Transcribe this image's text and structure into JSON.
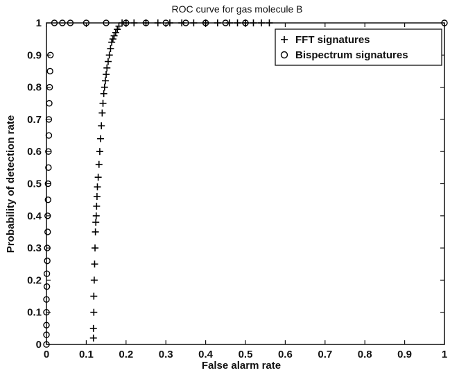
{
  "chart_data": {
    "type": "scatter",
    "title": "ROC curve for gas molecule B",
    "xlabel": "False alarm rate",
    "ylabel": "Probability of detection rate",
    "xlim": [
      0,
      1
    ],
    "ylim": [
      0,
      1
    ],
    "x_ticks": [
      "0",
      "0.1",
      "0.2",
      "0.3",
      "0.4",
      "0.5",
      "0.6",
      "0.7",
      "0.8",
      "0.9",
      "1"
    ],
    "y_ticks": [
      "0",
      "0.1",
      "0.2",
      "0.3",
      "0.4",
      "0.5",
      "0.6",
      "0.7",
      "0.8",
      "0.9",
      "1"
    ],
    "grid": false,
    "legend_position": "top-right",
    "series": [
      {
        "name": "FFT signatures",
        "marker": "plus",
        "color": "#000000",
        "x": [
          0.118,
          0.118,
          0.119,
          0.119,
          0.12,
          0.121,
          0.122,
          0.123,
          0.124,
          0.125,
          0.126,
          0.127,
          0.128,
          0.13,
          0.132,
          0.134,
          0.136,
          0.138,
          0.14,
          0.142,
          0.144,
          0.146,
          0.148,
          0.15,
          0.152,
          0.155,
          0.158,
          0.161,
          0.164,
          0.167,
          0.17,
          0.174,
          0.178,
          0.182,
          0.19,
          0.2,
          0.22,
          0.25,
          0.28,
          0.31,
          0.34,
          0.37,
          0.4,
          0.43,
          0.46,
          0.48,
          0.5,
          0.52,
          0.54,
          0.56
        ],
        "y": [
          0.02,
          0.05,
          0.1,
          0.15,
          0.2,
          0.25,
          0.3,
          0.35,
          0.38,
          0.4,
          0.43,
          0.46,
          0.49,
          0.52,
          0.56,
          0.6,
          0.64,
          0.68,
          0.72,
          0.75,
          0.78,
          0.8,
          0.82,
          0.84,
          0.86,
          0.88,
          0.9,
          0.92,
          0.94,
          0.95,
          0.96,
          0.97,
          0.98,
          0.99,
          1.0,
          1.0,
          1.0,
          1.0,
          1.0,
          1.0,
          1.0,
          1.0,
          1.0,
          1.0,
          1.0,
          1.0,
          1.0,
          1.0,
          1.0,
          1.0
        ]
      },
      {
        "name": "Bispectrum signatures",
        "marker": "circle",
        "color": "#000000",
        "x": [
          0.0,
          0.0,
          0.0,
          0.0,
          0.0,
          0.001,
          0.001,
          0.002,
          0.002,
          0.003,
          0.003,
          0.004,
          0.004,
          0.005,
          0.005,
          0.006,
          0.006,
          0.007,
          0.008,
          0.009,
          0.01,
          0.02,
          0.04,
          0.06,
          0.1,
          0.15,
          0.2,
          0.25,
          0.3,
          0.35,
          0.4,
          0.45,
          0.5,
          1.0
        ],
        "y": [
          0.0,
          0.03,
          0.06,
          0.1,
          0.14,
          0.18,
          0.22,
          0.26,
          0.3,
          0.35,
          0.4,
          0.45,
          0.5,
          0.55,
          0.6,
          0.65,
          0.7,
          0.75,
          0.8,
          0.85,
          0.9,
          1.0,
          1.0,
          1.0,
          1.0,
          1.0,
          1.0,
          1.0,
          1.0,
          1.0,
          1.0,
          1.0,
          1.0,
          1.0
        ]
      }
    ]
  }
}
